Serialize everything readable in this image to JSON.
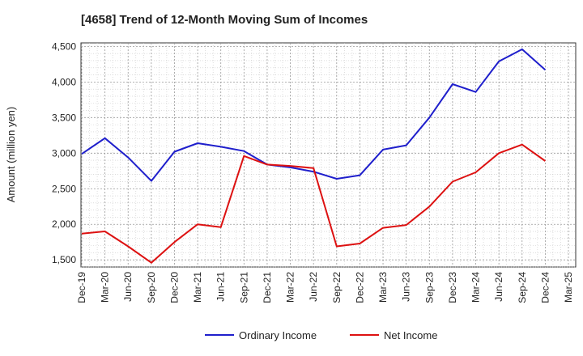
{
  "chart_data": {
    "type": "line",
    "title": "[4658]  Trend of 12-Month Moving Sum of Incomes",
    "xlabel": "",
    "ylabel": "Amount (million yen)",
    "ylim": [
      1400,
      4550
    ],
    "yticks": [
      1500,
      2000,
      2500,
      3000,
      3500,
      4000,
      4500
    ],
    "ytick_labels": [
      "1,500",
      "2,000",
      "2,500",
      "3,000",
      "3,500",
      "4,000",
      "4,500"
    ],
    "grid": true,
    "legend_position": "bottom",
    "categories": [
      "Dec-19",
      "Mar-20",
      "Jun-20",
      "Sep-20",
      "Dec-20",
      "Mar-21",
      "Jun-21",
      "Sep-21",
      "Dec-21",
      "Mar-22",
      "Jun-22",
      "Sep-22",
      "Dec-22",
      "Mar-23",
      "Jun-23",
      "Sep-23",
      "Dec-23",
      "Mar-24",
      "Jun-24",
      "Sep-24",
      "Dec-24",
      "Mar-25"
    ],
    "series": [
      {
        "name": "Ordinary Income",
        "color": "#1f1fcc",
        "values": [
          2990,
          3210,
          2940,
          2610,
          3020,
          3140,
          3090,
          3030,
          2840,
          2800,
          2740,
          2640,
          2690,
          3050,
          3110,
          3500,
          3970,
          3860,
          4290,
          4460,
          4170,
          null
        ]
      },
      {
        "name": "Net Income",
        "color": "#dd1111",
        "values": [
          1870,
          1900,
          1690,
          1460,
          1750,
          2000,
          1960,
          2960,
          2840,
          2820,
          2790,
          1690,
          1730,
          1950,
          1990,
          2250,
          2600,
          2730,
          3000,
          3120,
          2890,
          null
        ]
      }
    ]
  }
}
